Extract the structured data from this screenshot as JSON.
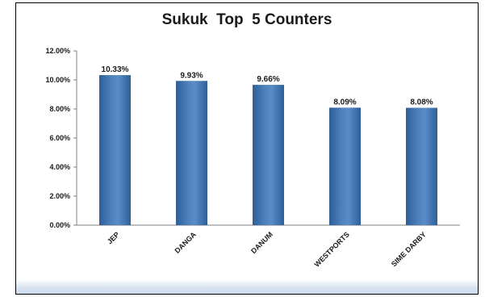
{
  "chart_data": {
    "type": "bar",
    "title": "Sukuk  Top  5 Counters",
    "xlabel": "",
    "ylabel": "",
    "categories": [
      "JEP",
      "DANGA",
      "DANUM",
      "WESTPORTS",
      "SIME DARBY"
    ],
    "values": [
      10.33,
      9.93,
      9.66,
      8.09,
      8.08
    ],
    "data_labels": [
      "10.33%",
      "9.93%",
      "9.66%",
      "8.09%",
      "8.08%"
    ],
    "ylim": [
      0,
      12
    ],
    "y_ticks": [
      0,
      2,
      4,
      6,
      8,
      10,
      12
    ],
    "y_tick_labels": [
      "0.00%",
      "2.00%",
      "4.00%",
      "6.00%",
      "8.00%",
      "10.00%",
      "12.00%"
    ],
    "grid": false,
    "legend": "none",
    "bar_color": "#4f81bd",
    "bar_color_dark": "#2d5a91"
  }
}
